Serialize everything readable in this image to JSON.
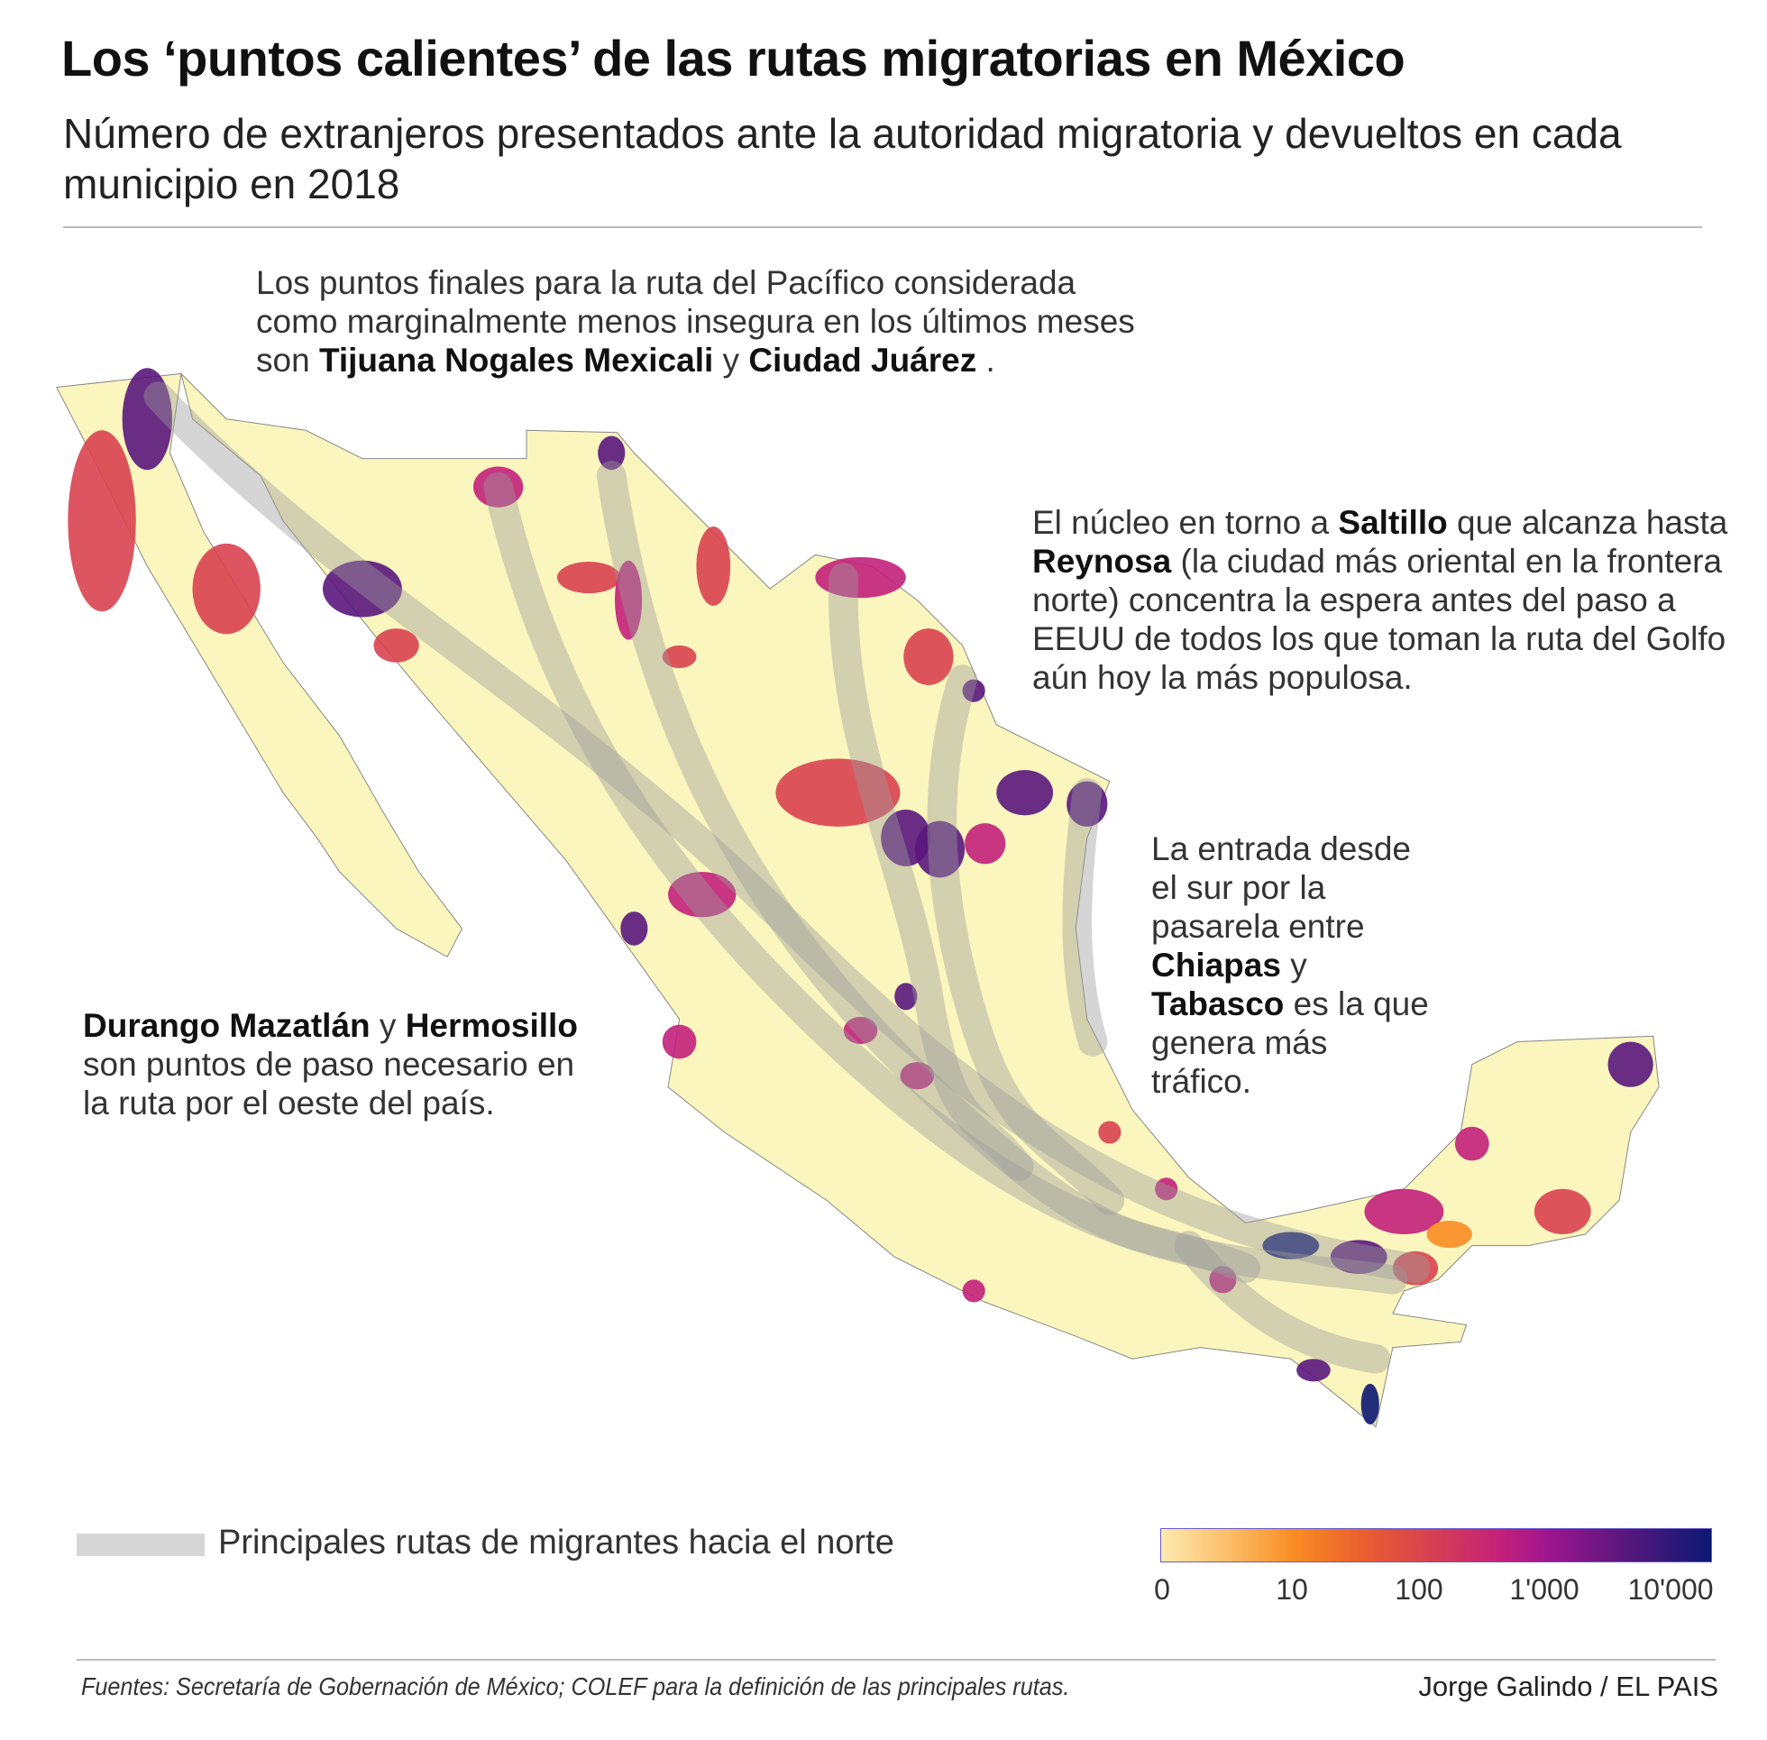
{
  "header": {
    "title": "Los ‘puntos calientes’ de las rutas migratorias en México",
    "subtitle": "Número de extranjeros presentados ante la autoridad migratoria y devueltos en cada municipio en 2018"
  },
  "annotations": {
    "pacific": {
      "l1": "Los puntos finales para la ruta del Pacífico considerada",
      "l2": "como marginalmente menos insegura en los últimos meses",
      "l3a": "son ",
      "b1": "Tijuana Nogales Mexicali",
      "l3b": " y ",
      "b2": "Ciudad Juárez",
      "l3c": " ."
    },
    "gulf": {
      "a": "El núcleo en torno a ",
      "b1": "Saltillo",
      "c": " que alcanza hasta",
      "b2": "Reynosa",
      "d": " (la ciudad más oriental en la frontera",
      "e": "norte) concentra la espera antes del paso a",
      "f": "EEUU de todos los que toman la ruta del Golfo",
      "g": "aún hoy la más populosa."
    },
    "south": {
      "a": "La entrada desde",
      "b": "el sur por la",
      "c": "pasarela entre",
      "b1": "Chiapas",
      "d": " y",
      "b2": "Tabasco",
      "e": " es la que",
      "f": "genera más",
      "g": "tráfico."
    },
    "west": {
      "b1": "Durango Mazatlán",
      "a": " y ",
      "b2": "Hermosillo",
      "c": "son puntos de paso necesario en",
      "d": "la ruta por el oeste del país."
    }
  },
  "legend": {
    "routes_label": "Principales rutas de migrantes hacia el norte",
    "routes_color": "#d6d6d6",
    "scale": "log",
    "ticks": [
      "0",
      "10",
      "100",
      "1'000",
      "10'000"
    ],
    "colors": [
      "#fde9b0",
      "#f98d24",
      "#d8434f",
      "#c2207a",
      "#5a177d",
      "#0b1873"
    ]
  },
  "footer": {
    "source": "Fuentes: Secretaría de Gobernación de México; COLEF para la definición de las principales rutas.",
    "credit": "Jorge Galindo / EL PAIS"
  }
}
